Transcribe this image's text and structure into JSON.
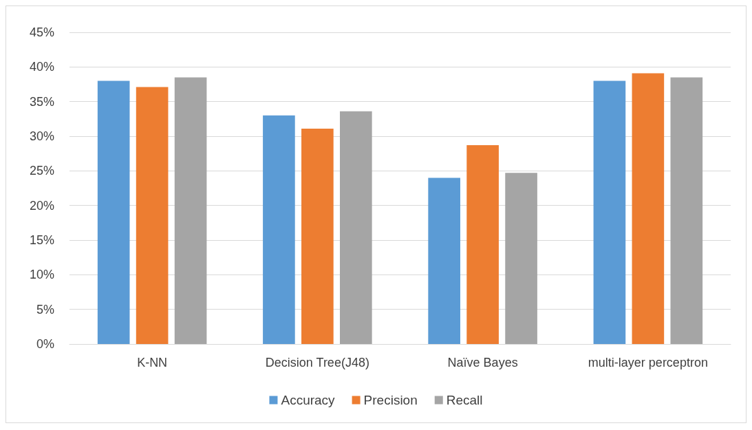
{
  "chart_data": {
    "type": "bar",
    "categories": [
      "K-NN",
      "Decision Tree(J48)",
      "Naïve Bayes",
      "multi-layer perceptron"
    ],
    "series": [
      {
        "name": "Accuracy",
        "color": "#5b9bd5",
        "values": [
          38,
          33,
          24,
          38
        ]
      },
      {
        "name": "Precision",
        "color": "#ed7d31",
        "values": [
          37.1,
          31.1,
          28.7,
          39.1
        ]
      },
      {
        "name": "Recall",
        "color": "#a5a5a5",
        "values": [
          38.5,
          33.6,
          24.7,
          38.5
        ]
      }
    ],
    "ylim": [
      0,
      45
    ],
    "yticks": [
      {
        "value": 0,
        "label": "0%"
      },
      {
        "value": 5,
        "label": "5%"
      },
      {
        "value": 10,
        "label": "10%"
      },
      {
        "value": 15,
        "label": "15%"
      },
      {
        "value": 20,
        "label": "20%"
      },
      {
        "value": 25,
        "label": "25%"
      },
      {
        "value": 30,
        "label": "30%"
      },
      {
        "value": 35,
        "label": "35%"
      },
      {
        "value": 40,
        "label": "40%"
      },
      {
        "value": 45,
        "label": "45%"
      }
    ],
    "grid": "y",
    "legend": "bottom"
  }
}
